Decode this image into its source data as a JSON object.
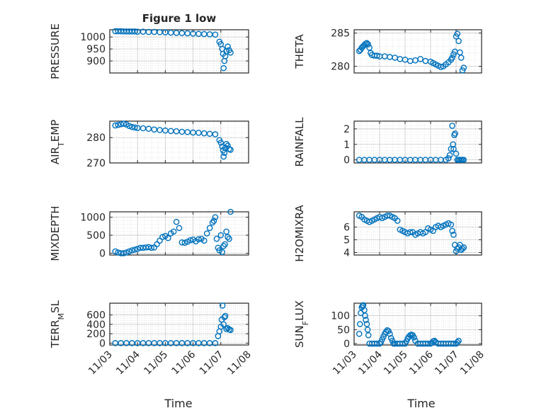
{
  "figure": {
    "x_axis_label": "Time",
    "marker_color": "#0072BD"
  },
  "chart_data": [
    {
      "type": "scatter",
      "title": "Figure 1 low",
      "ylabel": "PRESSURE",
      "xlim": [
        "11/03",
        "11/08"
      ],
      "ylim": [
        850,
        1030
      ],
      "yticks": [
        900,
        950,
        1000
      ],
      "grid": true,
      "series": [
        {
          "x": [
            3.2,
            3.3,
            3.4,
            3.5,
            3.6,
            3.7,
            3.8,
            3.9,
            4.0,
            4.2,
            4.4,
            4.6,
            4.8,
            5.0,
            5.2,
            5.4,
            5.6,
            5.8,
            6.0,
            6.2,
            6.4,
            6.6,
            6.8,
            6.95,
            7.0,
            7.05,
            7.08,
            7.1,
            7.13,
            7.16,
            7.2,
            7.25,
            7.3,
            7.35
          ],
          "y": [
            1024,
            1024,
            1024,
            1023,
            1023,
            1023,
            1023,
            1023,
            1022,
            1022,
            1021,
            1021,
            1020,
            1019,
            1018,
            1017,
            1016,
            1015,
            1014,
            1013,
            1012,
            1011,
            1010,
            980,
            970,
            950,
            930,
            870,
            900,
            920,
            940,
            960,
            945,
            935
          ]
        }
      ]
    },
    {
      "type": "scatter",
      "ylabel": "THETA",
      "xlim": [
        "11/03",
        "11/08"
      ],
      "ylim": [
        279,
        285.5
      ],
      "yticks": [
        280,
        285
      ],
      "grid": true,
      "series": [
        {
          "x": [
            3.2,
            3.25,
            3.3,
            3.35,
            3.4,
            3.45,
            3.5,
            3.55,
            3.6,
            3.65,
            3.7,
            3.8,
            3.9,
            4.0,
            4.2,
            4.4,
            4.6,
            4.8,
            5.0,
            5.2,
            5.4,
            5.6,
            5.8,
            6.0,
            6.1,
            6.2,
            6.3,
            6.4,
            6.5,
            6.6,
            6.7,
            6.8,
            6.85,
            6.9,
            6.95,
            7.0,
            7.05,
            7.1,
            7.15,
            7.2,
            7.25,
            7.3
          ],
          "y": [
            282.3,
            282.5,
            282.8,
            283.0,
            283.2,
            283.4,
            283.5,
            283.3,
            282.8,
            282.0,
            281.7,
            281.6,
            281.6,
            281.5,
            281.5,
            281.4,
            281.3,
            281.1,
            281.0,
            280.8,
            280.9,
            281.1,
            280.8,
            280.7,
            280.5,
            280.3,
            280.1,
            279.9,
            280.0,
            280.3,
            280.6,
            281.0,
            281.3,
            281.8,
            282.2,
            284.5,
            284.9,
            283.8,
            282.1,
            281.3,
            279.4,
            279.8
          ]
        }
      ]
    },
    {
      "type": "scatter",
      "ylabel": "AIR_TEMP",
      "xlim": [
        "11/03",
        "11/08"
      ],
      "ylim": [
        270,
        286.5
      ],
      "yticks": [
        270,
        280
      ],
      "grid": true,
      "series": [
        {
          "x": [
            3.2,
            3.3,
            3.4,
            3.5,
            3.6,
            3.7,
            3.8,
            3.9,
            4.0,
            4.2,
            4.4,
            4.6,
            4.8,
            5.0,
            5.2,
            5.4,
            5.6,
            5.8,
            6.0,
            6.2,
            6.4,
            6.6,
            6.8,
            6.95,
            7.0,
            7.05,
            7.08,
            7.1,
            7.13,
            7.16,
            7.2,
            7.25,
            7.3,
            7.35
          ],
          "y": [
            284.8,
            285.0,
            285.3,
            285.5,
            285.2,
            284.6,
            284.2,
            284.0,
            283.8,
            283.7,
            283.5,
            283.2,
            283.0,
            282.8,
            282.6,
            282.5,
            282.3,
            282.2,
            282.0,
            281.9,
            281.7,
            281.5,
            281.3,
            279.0,
            278.0,
            276.5,
            275.0,
            272.5,
            274.0,
            276.0,
            277.5,
            276.8,
            275.5,
            275.2
          ]
        }
      ]
    },
    {
      "type": "scatter",
      "ylabel": "RAINFALL",
      "xlim": [
        "11/03",
        "11/08"
      ],
      "ylim": [
        -0.2,
        2.5
      ],
      "yticks": [
        0,
        1,
        2
      ],
      "grid": true,
      "series": [
        {
          "x": [
            3.2,
            3.4,
            3.6,
            3.8,
            4.0,
            4.2,
            4.4,
            4.6,
            4.8,
            5.0,
            5.2,
            5.4,
            5.6,
            5.8,
            6.0,
            6.2,
            6.4,
            6.6,
            6.7,
            6.75,
            6.8,
            6.85,
            6.88,
            6.9,
            6.93,
            6.96,
            7.0,
            7.05,
            7.1,
            7.15,
            7.2,
            7.25,
            7.3
          ],
          "y": [
            0,
            0,
            0,
            0,
            0,
            0,
            0,
            0,
            0,
            0,
            0,
            0,
            0,
            0,
            0,
            0,
            0,
            0,
            0.1,
            0.3,
            0.7,
            2.2,
            1.0,
            0.7,
            1.6,
            1.7,
            0.4,
            0,
            0,
            0,
            0,
            0,
            0
          ]
        }
      ]
    },
    {
      "type": "scatter",
      "ylabel": "MIXDEPTH",
      "xlim": [
        "11/03",
        "11/08"
      ],
      "ylim": [
        -50,
        1150
      ],
      "yticks": [
        0,
        500,
        1000
      ],
      "grid": true,
      "series": [
        {
          "x": [
            3.2,
            3.3,
            3.4,
            3.5,
            3.6,
            3.7,
            3.8,
            3.9,
            4.0,
            4.1,
            4.2,
            4.3,
            4.4,
            4.5,
            4.6,
            4.7,
            4.8,
            4.9,
            5.0,
            5.1,
            5.2,
            5.3,
            5.4,
            5.5,
            5.6,
            5.7,
            5.8,
            5.9,
            6.0,
            6.1,
            6.2,
            6.3,
            6.4,
            6.5,
            6.6,
            6.7,
            6.75,
            6.8,
            6.85,
            6.9,
            6.95,
            7.0,
            7.05,
            7.1,
            7.15,
            7.2,
            7.25,
            7.3,
            7.35
          ],
          "y": [
            50,
            20,
            0,
            0,
            20,
            50,
            80,
            100,
            120,
            150,
            150,
            160,
            170,
            150,
            160,
            250,
            350,
            450,
            480,
            420,
            550,
            600,
            870,
            700,
            300,
            290,
            320,
            360,
            380,
            330,
            390,
            400,
            350,
            550,
            700,
            850,
            900,
            1000,
            400,
            150,
            80,
            500,
            30,
            200,
            250,
            600,
            450,
            400,
            1150
          ]
        }
      ]
    },
    {
      "type": "scatter",
      "ylabel": "H2OMIXRA",
      "xlim": [
        "11/03",
        "11/08"
      ],
      "ylim": [
        3.8,
        7.2
      ],
      "yticks": [
        4,
        5,
        6
      ],
      "grid": true,
      "series": [
        {
          "x": [
            3.2,
            3.3,
            3.4,
            3.5,
            3.6,
            3.7,
            3.8,
            3.9,
            4.0,
            4.1,
            4.2,
            4.3,
            4.4,
            4.5,
            4.6,
            4.7,
            4.8,
            4.9,
            5.0,
            5.1,
            5.2,
            5.3,
            5.4,
            5.5,
            5.6,
            5.7,
            5.8,
            5.9,
            6.0,
            6.1,
            6.2,
            6.3,
            6.4,
            6.5,
            6.6,
            6.7,
            6.8,
            6.85,
            6.9,
            6.95,
            7.0,
            7.05,
            7.1,
            7.15,
            7.2,
            7.25,
            7.3
          ],
          "y": [
            6.9,
            6.8,
            6.6,
            6.5,
            6.4,
            6.5,
            6.6,
            6.7,
            6.8,
            6.7,
            6.8,
            6.9,
            6.9,
            6.8,
            6.7,
            6.5,
            5.8,
            5.7,
            5.6,
            5.5,
            5.6,
            5.6,
            5.4,
            5.5,
            5.6,
            5.5,
            5.6,
            5.9,
            5.8,
            5.7,
            6.0,
            6.1,
            6.0,
            6.1,
            6.2,
            6.3,
            6.2,
            5.7,
            5.4,
            4.6,
            4.1,
            4.3,
            4.4,
            4.6,
            4.2,
            4.3,
            4.4
          ]
        }
      ]
    },
    {
      "type": "scatter",
      "ylabel": "TERR_MSL",
      "xlim": [
        "11/03",
        "11/08"
      ],
      "ylim": [
        -40,
        850
      ],
      "yticks": [
        0,
        200,
        400,
        600
      ],
      "grid": true,
      "series": [
        {
          "x": [
            3.2,
            3.4,
            3.6,
            3.8,
            4.0,
            4.2,
            4.4,
            4.6,
            4.8,
            5.0,
            5.2,
            5.4,
            5.6,
            5.8,
            6.0,
            6.2,
            6.4,
            6.6,
            6.8,
            6.9,
            6.95,
            7.0,
            7.03,
            7.06,
            7.1,
            7.13,
            7.16,
            7.2,
            7.25,
            7.3,
            7.35
          ],
          "y": [
            0,
            0,
            0,
            0,
            0,
            0,
            0,
            0,
            0,
            0,
            0,
            0,
            0,
            0,
            0,
            0,
            0,
            0,
            0,
            150,
            250,
            350,
            500,
            800,
            400,
            550,
            580,
            300,
            320,
            290,
            280
          ]
        }
      ]
    },
    {
      "type": "scatter",
      "ylabel": "SUN_FLUX",
      "xlim": [
        "11/03",
        "11/08"
      ],
      "ylim": [
        -5,
        145
      ],
      "yticks": [
        0,
        50,
        100
      ],
      "grid": true,
      "series": [
        {
          "x": [
            3.2,
            3.23,
            3.26,
            3.3,
            3.33,
            3.36,
            3.4,
            3.43,
            3.46,
            3.5,
            3.53,
            3.56,
            3.6,
            3.7,
            3.8,
            3.9,
            4.0,
            4.05,
            4.1,
            4.15,
            4.2,
            4.25,
            4.3,
            4.35,
            4.4,
            4.45,
            4.5,
            4.55,
            4.6,
            4.7,
            4.8,
            4.9,
            5.0,
            5.05,
            5.1,
            5.15,
            5.2,
            5.25,
            5.3,
            5.35,
            5.4,
            5.5,
            5.6,
            5.7,
            5.8,
            5.9,
            6.0,
            6.05,
            6.1,
            6.15,
            6.2,
            6.3,
            6.4,
            6.5,
            6.6,
            6.7,
            6.8,
            6.9,
            7.0,
            7.05,
            7.1
          ],
          "y": [
            35,
            70,
            110,
            130,
            135,
            138,
            120,
            100,
            85,
            70,
            50,
            30,
            0,
            0,
            0,
            0,
            0,
            5,
            15,
            25,
            35,
            42,
            48,
            45,
            35,
            20,
            10,
            0,
            0,
            0,
            0,
            0,
            0,
            8,
            18,
            25,
            30,
            32,
            30,
            22,
            10,
            0,
            0,
            0,
            0,
            0,
            0,
            3,
            8,
            10,
            5,
            0,
            0,
            0,
            0,
            0,
            0,
            0,
            0,
            5,
            10
          ]
        }
      ]
    }
  ],
  "x_ticks": [
    "11/03",
    "11/04",
    "11/05",
    "11/06",
    "11/07",
    "11/08"
  ]
}
